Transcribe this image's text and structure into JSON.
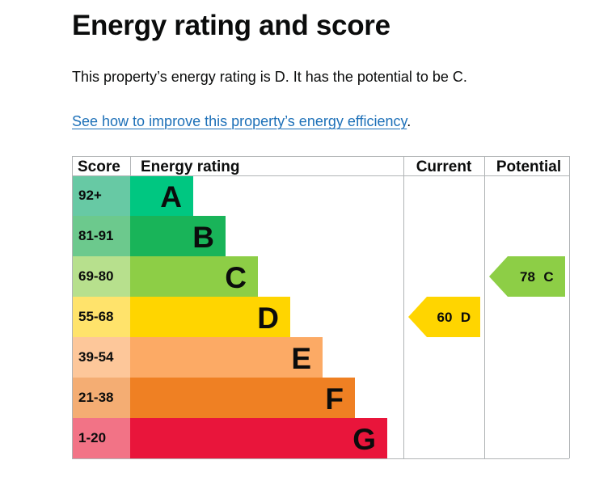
{
  "heading": "Energy rating and score",
  "summary": "This property’s energy rating is D. It has the potential to be C.",
  "improve_link": {
    "text": "See how to improve this property’s energy efficiency",
    "trailing": "."
  },
  "chart_data": {
    "type": "table",
    "columns": [
      "Score",
      "Energy rating",
      "Current",
      "Potential"
    ],
    "bands": [
      {
        "score": "92+",
        "letter": "A",
        "color": "#00c781",
        "score_bg": "#67c9a4"
      },
      {
        "score": "81-91",
        "letter": "B",
        "color": "#19b459",
        "score_bg": "#6cc98d"
      },
      {
        "score": "69-80",
        "letter": "C",
        "color": "#8dce46",
        "score_bg": "#b7e08d"
      },
      {
        "score": "55-68",
        "letter": "D",
        "color": "#ffd500",
        "score_bg": "#ffe36b"
      },
      {
        "score": "39-54",
        "letter": "E",
        "color": "#fcaa65",
        "score_bg": "#fdc79a"
      },
      {
        "score": "21-38",
        "letter": "F",
        "color": "#ef8023",
        "score_bg": "#f4ad73"
      },
      {
        "score": "1-20",
        "letter": "G",
        "color": "#e9153b",
        "score_bg": "#f27386"
      }
    ],
    "current": {
      "score": 60,
      "letter": "D",
      "band_index": 3,
      "color": "#ffd500"
    },
    "potential": {
      "score": 78,
      "letter": "C",
      "band_index": 2,
      "color": "#8dce46"
    }
  }
}
